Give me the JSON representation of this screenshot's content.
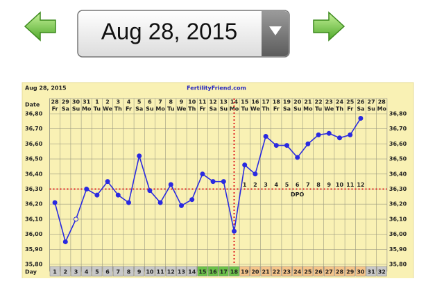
{
  "header": {
    "date": "Aug 28, 2015"
  },
  "chart_data": {
    "type": "line",
    "date_label": "Aug 28, 2015",
    "title": "FertilityFriend.com",
    "row_labels": {
      "date": "Date",
      "day": "Day",
      "dpo": "DPO"
    },
    "dates": [
      28,
      29,
      30,
      31,
      1,
      2,
      3,
      4,
      5,
      6,
      7,
      8,
      9,
      10,
      11,
      12,
      13,
      14,
      15,
      16,
      17,
      18,
      19,
      20,
      21,
      22,
      23,
      24,
      25,
      26,
      27,
      28
    ],
    "weekdays": [
      "Fr",
      "Sa",
      "Su",
      "Mo",
      "Tu",
      "We",
      "Th",
      "Fr",
      "Sa",
      "Su",
      "Mo",
      "Tu",
      "We",
      "Th",
      "Fr",
      "Sa",
      "Su",
      "Mo",
      "Tu",
      "We",
      "Th",
      "Fr",
      "Sa",
      "Su",
      "Mo",
      "Tu",
      "We",
      "Th",
      "Fr",
      "Sa",
      "Su",
      "Mo"
    ],
    "days": [
      1,
      2,
      3,
      4,
      5,
      6,
      7,
      8,
      9,
      10,
      11,
      12,
      13,
      14,
      15,
      16,
      17,
      18,
      19,
      20,
      21,
      22,
      23,
      24,
      25,
      26,
      27,
      28,
      29,
      30,
      31,
      32
    ],
    "day_colors": [
      "#c8c8c8",
      "#c8c8c8",
      "#c8c8c8",
      "#c8c8c8",
      "#c8c8c8",
      "#c8c8c8",
      "#c8c8c8",
      "#c8c8c8",
      "#c8c8c8",
      "#c8c8c8",
      "#c8c8c8",
      "#c8c8c8",
      "#c8c8c8",
      "#c8c8c8",
      "#6cc24a",
      "#6cc24a",
      "#6cc24a",
      "#6cc24a",
      "#f5c48a",
      "#f5c48a",
      "#f5c48a",
      "#f5c48a",
      "#f5c48a",
      "#f5c48a",
      "#f5c48a",
      "#f5c48a",
      "#f5c48a",
      "#f5c48a",
      "#f5c48a",
      "#f5c48a",
      "#c8c8c8",
      "#c8c8c8"
    ],
    "dpo": [
      null,
      null,
      null,
      null,
      null,
      null,
      null,
      null,
      null,
      null,
      null,
      null,
      null,
      null,
      null,
      null,
      null,
      null,
      1,
      2,
      3,
      4,
      5,
      6,
      7,
      8,
      9,
      10,
      11,
      12,
      null,
      null
    ],
    "series": [
      {
        "color": "#2a2ae0",
        "values": [
          36.21,
          35.95,
          36.1,
          36.3,
          36.26,
          36.35,
          36.26,
          36.21,
          36.52,
          36.29,
          36.21,
          36.33,
          36.19,
          36.23,
          36.4,
          36.35,
          36.35,
          36.02,
          36.46,
          36.4,
          36.65,
          36.59,
          36.59,
          36.51,
          36.6,
          36.66,
          36.67,
          36.64,
          36.66,
          36.77,
          null,
          null
        ]
      }
    ],
    "hollow_days": [
      3
    ],
    "coverline": 36.3,
    "ovulation_day": 18,
    "marker_line_color": "#e02020",
    "ylim": [
      35.8,
      36.8
    ],
    "yticks": [
      {
        "value": 35.8,
        "label": "35,80"
      },
      {
        "value": 35.9,
        "label": "35,90"
      },
      {
        "value": 36.0,
        "label": "36,00"
      },
      {
        "value": 36.1,
        "label": "36,10"
      },
      {
        "value": 36.2,
        "label": "36,20"
      },
      {
        "value": 36.3,
        "label": "36,30"
      },
      {
        "value": 36.4,
        "label": "36,40"
      },
      {
        "value": 36.5,
        "label": "36,50"
      },
      {
        "value": 36.6,
        "label": "36,60"
      },
      {
        "value": 36.7,
        "label": "36,70"
      },
      {
        "value": 36.8,
        "label": "36,80"
      }
    ],
    "grid": true
  }
}
